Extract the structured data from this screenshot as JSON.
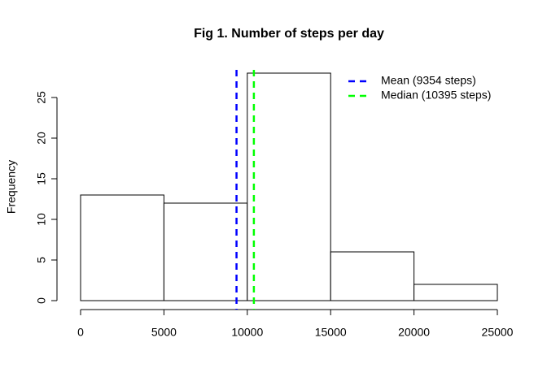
{
  "chart_data": {
    "type": "histogram",
    "title": "Fig 1. Number of steps per day",
    "ylabel": "Frequency",
    "bins": [
      0,
      5000,
      10000,
      15000,
      20000,
      25000
    ],
    "values": [
      13,
      12,
      28,
      6,
      2
    ],
    "color": "#ffffff",
    "xlim": [
      0,
      25000
    ],
    "xticks": [
      0,
      5000,
      10000,
      15000,
      20000,
      25000
    ],
    "ylim": [
      0,
      28
    ],
    "yticks": [
      0,
      5,
      10,
      15,
      20,
      25
    ],
    "lines": [
      {
        "name": "Mean (9354 steps)",
        "value": 9354,
        "color": "#0000ff"
      },
      {
        "name": "Median (10395 steps)",
        "value": 10395,
        "color": "#00ff00"
      }
    ],
    "legend": "topright"
  }
}
